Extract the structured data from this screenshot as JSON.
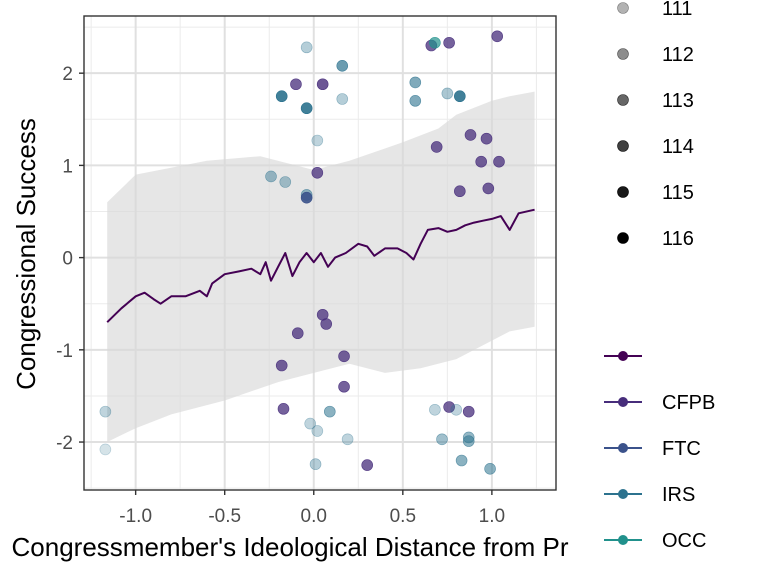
{
  "chart_data": {
    "type": "scatter",
    "title": "",
    "xlabel": "Congressmember's Ideological Distance from Pr",
    "ylabel": "Congressional Success",
    "xlim": [
      -1.29,
      1.36
    ],
    "ylim": [
      -2.52,
      2.62
    ],
    "xticks": [
      -1.0,
      -0.5,
      0.0,
      0.5,
      1.0
    ],
    "xtick_labels": [
      "-1.0",
      "-0.5",
      "0.0",
      "0.5",
      "1.0"
    ],
    "yticks": [
      -2,
      -1,
      0,
      1,
      2
    ],
    "ytick_labels": [
      "-2",
      "-1",
      "0",
      "1",
      "2"
    ],
    "grid": true,
    "legend_alpha": {
      "placement": "right",
      "entries": [
        {
          "label": "111",
          "alpha": 0.3
        },
        {
          "label": "112",
          "alpha": 0.45
        },
        {
          "label": "113",
          "alpha": 0.6
        },
        {
          "label": "114",
          "alpha": 0.75
        },
        {
          "label": "115",
          "alpha": 0.9
        },
        {
          "label": "116",
          "alpha": 1.0
        }
      ]
    },
    "legend_color": {
      "placement": "right",
      "entries": [
        {
          "label": "",
          "color": "#440154"
        },
        {
          "label": "CFPB",
          "color": "#472d7b"
        },
        {
          "label": "FTC",
          "color": "#3b528b"
        },
        {
          "label": "IRS",
          "color": "#2c728e"
        },
        {
          "label": "OCC",
          "color": "#21918c"
        }
      ]
    },
    "ribbon": {
      "color": "#d9d9d9",
      "upper": [
        [
          -1.16,
          0.6
        ],
        [
          -1.0,
          0.9
        ],
        [
          -0.6,
          1.05
        ],
        [
          -0.3,
          1.1
        ],
        [
          0.0,
          0.95
        ],
        [
          0.2,
          1.05
        ],
        [
          0.5,
          1.25
        ],
        [
          0.7,
          1.4
        ],
        [
          0.8,
          1.55
        ],
        [
          1.0,
          1.7
        ],
        [
          1.1,
          1.75
        ],
        [
          1.24,
          1.8
        ]
      ],
      "lower": [
        [
          1.24,
          -0.75
        ],
        [
          1.1,
          -0.8
        ],
        [
          1.0,
          -0.9
        ],
        [
          0.8,
          -1.1
        ],
        [
          0.6,
          -1.2
        ],
        [
          0.4,
          -1.25
        ],
        [
          0.2,
          -1.15
        ],
        [
          0.0,
          -1.25
        ],
        [
          -0.2,
          -1.35
        ],
        [
          -0.5,
          -1.55
        ],
        [
          -0.8,
          -1.7
        ],
        [
          -1.0,
          -1.85
        ],
        [
          -1.16,
          -2.0
        ]
      ]
    },
    "fit_line": {
      "color": "#440154",
      "points": [
        [
          -1.16,
          -0.7
        ],
        [
          -1.08,
          -0.55
        ],
        [
          -1.0,
          -0.42
        ],
        [
          -0.95,
          -0.38
        ],
        [
          -0.9,
          -0.45
        ],
        [
          -0.86,
          -0.5
        ],
        [
          -0.8,
          -0.42
        ],
        [
          -0.72,
          -0.42
        ],
        [
          -0.64,
          -0.36
        ],
        [
          -0.6,
          -0.42
        ],
        [
          -0.57,
          -0.28
        ],
        [
          -0.5,
          -0.18
        ],
        [
          -0.42,
          -0.15
        ],
        [
          -0.35,
          -0.12
        ],
        [
          -0.3,
          -0.18
        ],
        [
          -0.27,
          -0.05
        ],
        [
          -0.24,
          -0.25
        ],
        [
          -0.2,
          -0.1
        ],
        [
          -0.16,
          0.05
        ],
        [
          -0.12,
          -0.2
        ],
        [
          -0.08,
          -0.05
        ],
        [
          -0.04,
          0.05
        ],
        [
          0.0,
          -0.05
        ],
        [
          0.04,
          0.05
        ],
        [
          0.08,
          -0.1
        ],
        [
          0.12,
          0.0
        ],
        [
          0.18,
          0.05
        ],
        [
          0.25,
          0.15
        ],
        [
          0.3,
          0.12
        ],
        [
          0.34,
          0.02
        ],
        [
          0.4,
          0.1
        ],
        [
          0.47,
          0.1
        ],
        [
          0.52,
          0.05
        ],
        [
          0.56,
          -0.02
        ],
        [
          0.6,
          0.15
        ],
        [
          0.64,
          0.3
        ],
        [
          0.7,
          0.32
        ],
        [
          0.75,
          0.28
        ],
        [
          0.8,
          0.3
        ],
        [
          0.85,
          0.35
        ],
        [
          0.9,
          0.38
        ],
        [
          0.95,
          0.4
        ],
        [
          1.0,
          0.42
        ],
        [
          1.05,
          0.45
        ],
        [
          1.1,
          0.3
        ],
        [
          1.15,
          0.48
        ],
        [
          1.24,
          0.52
        ]
      ]
    },
    "points": [
      {
        "x": -1.17,
        "y": -1.67,
        "color": "#2c728e",
        "alpha": 0.3
      },
      {
        "x": -1.17,
        "y": -2.08,
        "color": "#2c728e",
        "alpha": 0.2
      },
      {
        "x": -0.04,
        "y": 2.28,
        "color": "#2c728e",
        "alpha": 0.35
      },
      {
        "x": -0.1,
        "y": 1.88,
        "color": "#472d7b",
        "alpha": 0.75
      },
      {
        "x": 0.05,
        "y": 1.88,
        "color": "#472d7b",
        "alpha": 0.8
      },
      {
        "x": 0.16,
        "y": 2.08,
        "color": "#2c728e",
        "alpha": 0.7
      },
      {
        "x": -0.18,
        "y": 1.75,
        "color": "#2c728e",
        "alpha": 0.9
      },
      {
        "x": -0.04,
        "y": 1.62,
        "color": "#2c728e",
        "alpha": 0.9
      },
      {
        "x": 0.16,
        "y": 1.72,
        "color": "#2c728e",
        "alpha": 0.35
      },
      {
        "x": 0.02,
        "y": 1.27,
        "color": "#2c728e",
        "alpha": 0.3
      },
      {
        "x": -0.24,
        "y": 0.88,
        "color": "#2c728e",
        "alpha": 0.45
      },
      {
        "x": -0.16,
        "y": 0.82,
        "color": "#2c728e",
        "alpha": 0.4
      },
      {
        "x": 0.02,
        "y": 0.92,
        "color": "#472d7b",
        "alpha": 0.75
      },
      {
        "x": -0.04,
        "y": 0.68,
        "color": "#2c728e",
        "alpha": 0.5
      },
      {
        "x": -0.04,
        "y": 0.65,
        "color": "#3b528b",
        "alpha": 0.9
      },
      {
        "x": 0.66,
        "y": 2.3,
        "color": "#472d7b",
        "alpha": 0.75
      },
      {
        "x": 0.68,
        "y": 2.33,
        "color": "#21918c",
        "alpha": 0.7
      },
      {
        "x": 0.76,
        "y": 2.33,
        "color": "#472d7b",
        "alpha": 0.75
      },
      {
        "x": 1.03,
        "y": 2.4,
        "color": "#472d7b",
        "alpha": 0.75
      },
      {
        "x": 0.57,
        "y": 1.9,
        "color": "#2c728e",
        "alpha": 0.6
      },
      {
        "x": 0.57,
        "y": 1.7,
        "color": "#2c728e",
        "alpha": 0.6
      },
      {
        "x": 0.75,
        "y": 1.78,
        "color": "#2c728e",
        "alpha": 0.4
      },
      {
        "x": 0.82,
        "y": 1.75,
        "color": "#2c728e",
        "alpha": 0.9
      },
      {
        "x": 0.69,
        "y": 1.2,
        "color": "#472d7b",
        "alpha": 0.75
      },
      {
        "x": 0.88,
        "y": 1.33,
        "color": "#472d7b",
        "alpha": 0.75
      },
      {
        "x": 0.97,
        "y": 1.29,
        "color": "#472d7b",
        "alpha": 0.75
      },
      {
        "x": 0.94,
        "y": 1.04,
        "color": "#472d7b",
        "alpha": 0.75
      },
      {
        "x": 1.04,
        "y": 1.04,
        "color": "#472d7b",
        "alpha": 0.75
      },
      {
        "x": 0.82,
        "y": 0.72,
        "color": "#472d7b",
        "alpha": 0.75
      },
      {
        "x": 0.98,
        "y": 0.75,
        "color": "#472d7b",
        "alpha": 0.75
      },
      {
        "x": 0.05,
        "y": -0.62,
        "color": "#472d7b",
        "alpha": 0.75
      },
      {
        "x": 0.07,
        "y": -0.72,
        "color": "#472d7b",
        "alpha": 0.75
      },
      {
        "x": -0.09,
        "y": -0.82,
        "color": "#472d7b",
        "alpha": 0.75
      },
      {
        "x": -0.18,
        "y": -1.17,
        "color": "#472d7b",
        "alpha": 0.75
      },
      {
        "x": 0.17,
        "y": -1.07,
        "color": "#472d7b",
        "alpha": 0.75
      },
      {
        "x": 0.17,
        "y": -1.4,
        "color": "#472d7b",
        "alpha": 0.75
      },
      {
        "x": -0.17,
        "y": -1.64,
        "color": "#472d7b",
        "alpha": 0.75
      },
      {
        "x": 0.09,
        "y": -1.67,
        "color": "#2c728e",
        "alpha": 0.55
      },
      {
        "x": -0.02,
        "y": -1.8,
        "color": "#2c728e",
        "alpha": 0.3
      },
      {
        "x": 0.02,
        "y": -1.88,
        "color": "#2c728e",
        "alpha": 0.3
      },
      {
        "x": 0.19,
        "y": -1.97,
        "color": "#2c728e",
        "alpha": 0.3
      },
      {
        "x": 0.01,
        "y": -2.24,
        "color": "#2c728e",
        "alpha": 0.35
      },
      {
        "x": 0.3,
        "y": -2.25,
        "color": "#472d7b",
        "alpha": 0.75
      },
      {
        "x": 0.68,
        "y": -1.65,
        "color": "#2c728e",
        "alpha": 0.3
      },
      {
        "x": 0.76,
        "y": -1.62,
        "color": "#472d7b",
        "alpha": 0.75
      },
      {
        "x": 0.8,
        "y": -1.65,
        "color": "#2c728e",
        "alpha": 0.3
      },
      {
        "x": 0.87,
        "y": -1.67,
        "color": "#472d7b",
        "alpha": 0.75
      },
      {
        "x": 0.72,
        "y": -1.97,
        "color": "#2c728e",
        "alpha": 0.45
      },
      {
        "x": 0.87,
        "y": -1.95,
        "color": "#2c728e",
        "alpha": 0.5
      },
      {
        "x": 0.87,
        "y": -1.99,
        "color": "#2c728e",
        "alpha": 0.55
      },
      {
        "x": 0.83,
        "y": -2.2,
        "color": "#2c728e",
        "alpha": 0.55
      },
      {
        "x": 0.99,
        "y": -2.29,
        "color": "#2c728e",
        "alpha": 0.55
      }
    ]
  }
}
